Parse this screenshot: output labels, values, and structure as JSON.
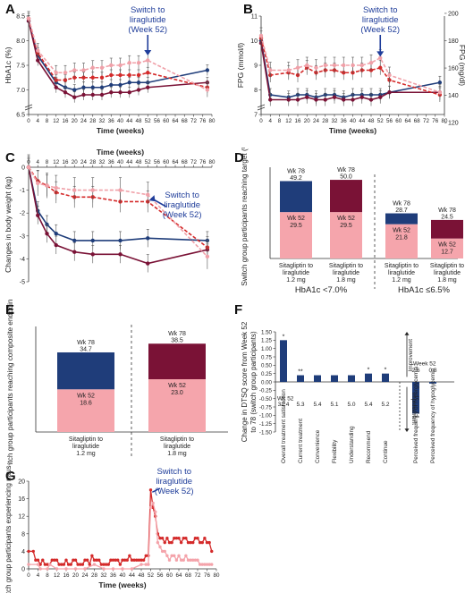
{
  "panels": {
    "A": {
      "label": "A"
    },
    "B": {
      "label": "B"
    },
    "C": {
      "label": "C"
    },
    "D": {
      "label": "D"
    },
    "E": {
      "label": "E"
    },
    "F": {
      "label": "F"
    },
    "G": {
      "label": "G"
    }
  },
  "switch_annotation": {
    "line1": "Switch to",
    "line2": "liraglutide",
    "line3": "(Week 52)"
  },
  "colors": {
    "blue": "#1f3d7a",
    "maroon": "#7a1236",
    "red": "#d42a2a",
    "pink": "#f0a0a8",
    "light_pink": "#f4a3aa"
  },
  "chart_data": [
    {
      "panel": "A",
      "type": "line",
      "xlabel": "Time (weeks)",
      "ylabel": "HbA1c (%)",
      "xlim": [
        0,
        80
      ],
      "ylim": [
        6.5,
        8.5
      ],
      "xticks": [
        0,
        4,
        8,
        12,
        16,
        20,
        24,
        28,
        32,
        36,
        40,
        44,
        48,
        52,
        56,
        60,
        64,
        68,
        72,
        76,
        80
      ],
      "yticks": [
        6.5,
        7.0,
        7.5,
        8.0,
        8.5
      ],
      "x": [
        0,
        4,
        12,
        16,
        20,
        24,
        28,
        32,
        36,
        40,
        44,
        48,
        52,
        78
      ],
      "series": [
        {
          "color": "blue",
          "values": [
            8.4,
            7.7,
            7.15,
            7.05,
            7.0,
            7.05,
            7.05,
            7.05,
            7.1,
            7.1,
            7.15,
            7.15,
            7.15,
            7.4
          ]
        },
        {
          "color": "maroon",
          "values": [
            8.4,
            7.6,
            7.05,
            6.95,
            6.85,
            6.9,
            6.9,
            6.9,
            6.95,
            6.95,
            6.95,
            7.0,
            7.05,
            7.15
          ]
        },
        {
          "color": "red",
          "dashed": true,
          "values": [
            8.45,
            7.75,
            7.2,
            7.2,
            7.25,
            7.25,
            7.25,
            7.25,
            7.3,
            7.3,
            7.3,
            7.3,
            7.35,
            7.05
          ]
        },
        {
          "color": "pink",
          "dashed": true,
          "values": [
            8.45,
            7.8,
            7.35,
            7.35,
            7.4,
            7.4,
            7.45,
            7.45,
            7.5,
            7.5,
            7.55,
            7.55,
            7.6,
            7.0
          ]
        }
      ]
    },
    {
      "panel": "B",
      "type": "line",
      "xlabel": "Time (weeks)",
      "ylabel": "FPG (mmol/l)",
      "ylabel2": "FPG (mg/dl)",
      "xlim": [
        0,
        80
      ],
      "ylim": [
        7,
        11
      ],
      "ylim2_ticks": [
        120,
        140,
        160,
        180,
        200
      ],
      "xticks": [
        0,
        4,
        8,
        12,
        16,
        20,
        24,
        28,
        32,
        36,
        40,
        44,
        48,
        52,
        56,
        60,
        64,
        68,
        72,
        76,
        80
      ],
      "yticks": [
        7,
        8,
        9,
        10,
        11
      ],
      "x": [
        0,
        4,
        12,
        16,
        20,
        24,
        28,
        32,
        36,
        40,
        44,
        48,
        52,
        56,
        78
      ],
      "series": [
        {
          "color": "blue",
          "values": [
            10.0,
            7.8,
            7.7,
            7.8,
            7.8,
            7.7,
            7.8,
            7.8,
            7.7,
            7.8,
            7.8,
            7.8,
            7.8,
            7.9,
            8.3
          ]
        },
        {
          "color": "maroon",
          "values": [
            9.9,
            7.6,
            7.6,
            7.6,
            7.7,
            7.6,
            7.6,
            7.7,
            7.6,
            7.6,
            7.7,
            7.6,
            7.7,
            7.9,
            7.9
          ]
        },
        {
          "color": "red",
          "dashed": true,
          "values": [
            10.1,
            8.6,
            8.7,
            8.6,
            8.9,
            8.7,
            8.8,
            8.8,
            8.7,
            8.7,
            8.8,
            8.8,
            8.9,
            8.4,
            7.8
          ]
        },
        {
          "color": "pink",
          "dashed": true,
          "values": [
            10.2,
            8.8,
            8.8,
            8.9,
            9.0,
            8.9,
            9.0,
            9.0,
            9.0,
            9.0,
            9.0,
            9.1,
            9.3,
            8.6,
            7.9
          ]
        }
      ]
    },
    {
      "panel": "C",
      "type": "line",
      "xlabel": "Time (weeks)",
      "ylabel": "Changes in body weight (kg)",
      "xlim": [
        0,
        80
      ],
      "ylim": [
        -5,
        0
      ],
      "xticks": [
        0,
        4,
        8,
        12,
        16,
        20,
        24,
        28,
        32,
        36,
        40,
        44,
        48,
        52,
        56,
        60,
        64,
        68,
        72,
        76,
        80
      ],
      "yticks": [
        0,
        -1,
        -2,
        -3,
        -4,
        -5
      ],
      "x": [
        0,
        4,
        8,
        12,
        20,
        28,
        40,
        52,
        78
      ],
      "series": [
        {
          "color": "blue",
          "values": [
            0,
            -1.9,
            -2.5,
            -2.9,
            -3.2,
            -3.2,
            -3.2,
            -3.1,
            -3.2
          ]
        },
        {
          "color": "maroon",
          "values": [
            0,
            -2.1,
            -2.9,
            -3.4,
            -3.7,
            -3.8,
            -3.8,
            -4.2,
            -3.6
          ]
        },
        {
          "color": "red",
          "dashed": true,
          "values": [
            0,
            -0.6,
            -0.8,
            -1.1,
            -1.3,
            -1.3,
            -1.5,
            -1.5,
            -3.5
          ]
        },
        {
          "color": "pink",
          "dashed": true,
          "values": [
            0,
            -0.7,
            -0.8,
            -0.9,
            -1.0,
            -1.0,
            -1.0,
            -1.2,
            -3.9
          ]
        }
      ]
    },
    {
      "panel": "D",
      "type": "bar",
      "ylabel": "Switch group participants reaching target (%)",
      "categories": [
        "Sitagliptin to liraglutide 1.2 mg",
        "Sitagliptin to liraglutide 1.8 mg",
        "Sitagliptin to liraglutide 1.2 mg",
        "Sitagliptin to liraglutide 1.8 mg"
      ],
      "groups": [
        "HbA1c <7.0%",
        "HbA1c ≤6.5%"
      ],
      "series": [
        {
          "name": "Wk 52",
          "values": [
            29.5,
            29.5,
            21.8,
            12.7
          ]
        },
        {
          "name": "Wk 78",
          "values": [
            49.2,
            50.0,
            28.7,
            24.5
          ]
        }
      ],
      "top_colors": [
        "blue",
        "maroon",
        "blue",
        "maroon"
      ]
    },
    {
      "panel": "E",
      "type": "bar",
      "ylabel": "Switch group participants reaching composite endpoint (%)",
      "categories": [
        "Sitagliptin to liraglutide 1.2 mg",
        "Sitagliptin to liraglutide 1.8 mg"
      ],
      "series": [
        {
          "name": "Wk 52",
          "values": [
            18.6,
            23.0
          ]
        },
        {
          "name": "Wk 78",
          "values": [
            34.7,
            38.5
          ]
        }
      ],
      "top_colors": [
        "blue",
        "maroon"
      ]
    },
    {
      "panel": "F",
      "type": "bar",
      "ylabel": "Change in DTSQ score from Week 52 to 78 (switch group participants)",
      "ylim": [
        -1.5,
        1.5
      ],
      "yticks": [
        -1.5,
        -1.25,
        -1.0,
        -0.75,
        -0.5,
        -0.25,
        0,
        0.25,
        0.5,
        0.75,
        1.0,
        1.25,
        1.5
      ],
      "categories": [
        "Overall treatment satisfaction",
        "Current treatment",
        "Convenience",
        "Flexibility",
        "Understanding",
        "Recommend",
        "Continue",
        "Perceived frequency of hyperglycemia",
        "Perceived frequency of hypoglycemia"
      ],
      "values": [
        1.25,
        0.2,
        0.2,
        0.2,
        0.2,
        0.25,
        0.25,
        -0.95,
        -0.05
      ],
      "significance": [
        "*",
        "**",
        "",
        "",
        "",
        "*",
        "*",
        "***",
        ""
      ],
      "week52_label": "Wk 52",
      "week52_values": [
        "31.4",
        "5.3",
        "5.4",
        "5.1",
        "5.0",
        "5.4",
        "5.2"
      ],
      "week52_label_right": "Week 52",
      "week52_values_right": [
        "2.6",
        "0.8"
      ],
      "improvement_label": "Improvement"
    },
    {
      "panel": "G",
      "type": "line",
      "xlabel": "Time (weeks)",
      "ylabel": "Switch group participants experiencing nausea (%)",
      "xlim": [
        0,
        80
      ],
      "ylim": [
        0,
        20
      ],
      "xticks": [
        0,
        4,
        8,
        12,
        16,
        20,
        24,
        28,
        32,
        36,
        40,
        44,
        48,
        52,
        56,
        60,
        64,
        68,
        72,
        76,
        80
      ],
      "yticks": [
        0,
        4,
        8,
        12,
        16,
        20
      ],
      "series": [
        {
          "color": "red",
          "values": [
            [
              0,
              4
            ],
            [
              2,
              4
            ],
            [
              3,
              2
            ],
            [
              4,
              2
            ],
            [
              5,
              1
            ],
            [
              6,
              2
            ],
            [
              7,
              1
            ],
            [
              8,
              1
            ],
            [
              9,
              1
            ],
            [
              10,
              2
            ],
            [
              11,
              2
            ],
            [
              12,
              2
            ],
            [
              13,
              1
            ],
            [
              14,
              1
            ],
            [
              15,
              1
            ],
            [
              16,
              2
            ],
            [
              17,
              1
            ],
            [
              18,
              1
            ],
            [
              19,
              2
            ],
            [
              20,
              2
            ],
            [
              21,
              1
            ],
            [
              22,
              1
            ],
            [
              23,
              1
            ],
            [
              24,
              2
            ],
            [
              25,
              2
            ],
            [
              26,
              1
            ],
            [
              27,
              3
            ],
            [
              28,
              2
            ],
            [
              29,
              2
            ],
            [
              30,
              2
            ],
            [
              31,
              1
            ],
            [
              32,
              1
            ],
            [
              33,
              1
            ],
            [
              34,
              1
            ],
            [
              35,
              2
            ],
            [
              36,
              2
            ],
            [
              37,
              2
            ],
            [
              38,
              2
            ],
            [
              39,
              1
            ],
            [
              40,
              2
            ],
            [
              41,
              2
            ],
            [
              42,
              2
            ],
            [
              43,
              3
            ],
            [
              44,
              2
            ],
            [
              45,
              2
            ],
            [
              46,
              2
            ],
            [
              47,
              2
            ],
            [
              48,
              2
            ],
            [
              49,
              2
            ],
            [
              50,
              3
            ],
            [
              51,
              3
            ],
            [
              52,
              18
            ],
            [
              53,
              14
            ],
            [
              54,
              12
            ],
            [
              55,
              8
            ],
            [
              56,
              7
            ],
            [
              57,
              7
            ],
            [
              58,
              6
            ],
            [
              59,
              7
            ],
            [
              60,
              6
            ],
            [
              61,
              6
            ],
            [
              62,
              7
            ],
            [
              63,
              7
            ],
            [
              64,
              7
            ],
            [
              65,
              6
            ],
            [
              66,
              7
            ],
            [
              67,
              7
            ],
            [
              68,
              6
            ],
            [
              69,
              6
            ],
            [
              70,
              6
            ],
            [
              71,
              7
            ],
            [
              72,
              7
            ],
            [
              73,
              6
            ],
            [
              74,
              6
            ],
            [
              75,
              7
            ],
            [
              76,
              6
            ],
            [
              77,
              6
            ],
            [
              78,
              4
            ]
          ]
        },
        {
          "color": "light_pink",
          "values": [
            [
              0,
              1
            ],
            [
              4,
              1
            ],
            [
              5,
              0
            ],
            [
              8,
              0
            ],
            [
              9,
              1
            ],
            [
              12,
              0
            ],
            [
              16,
              0
            ],
            [
              20,
              0
            ],
            [
              24,
              0
            ],
            [
              28,
              1
            ],
            [
              32,
              0
            ],
            [
              36,
              0
            ],
            [
              40,
              0
            ],
            [
              44,
              0
            ],
            [
              48,
              1
            ],
            [
              50,
              1
            ],
            [
              51,
              1
            ],
            [
              52,
              14
            ],
            [
              53,
              15
            ],
            [
              54,
              13
            ],
            [
              55,
              6
            ],
            [
              56,
              5
            ],
            [
              57,
              4
            ],
            [
              58,
              4
            ],
            [
              59,
              3
            ],
            [
              60,
              2
            ],
            [
              61,
              3
            ],
            [
              62,
              3
            ],
            [
              63,
              2
            ],
            [
              64,
              3
            ],
            [
              65,
              2
            ],
            [
              66,
              2
            ],
            [
              67,
              3
            ],
            [
              68,
              2
            ],
            [
              69,
              2
            ],
            [
              70,
              2
            ],
            [
              71,
              2
            ],
            [
              72,
              2
            ],
            [
              73,
              1
            ],
            [
              74,
              1
            ],
            [
              75,
              1
            ],
            [
              76,
              1
            ],
            [
              77,
              1
            ],
            [
              78,
              1
            ]
          ]
        }
      ]
    }
  ]
}
